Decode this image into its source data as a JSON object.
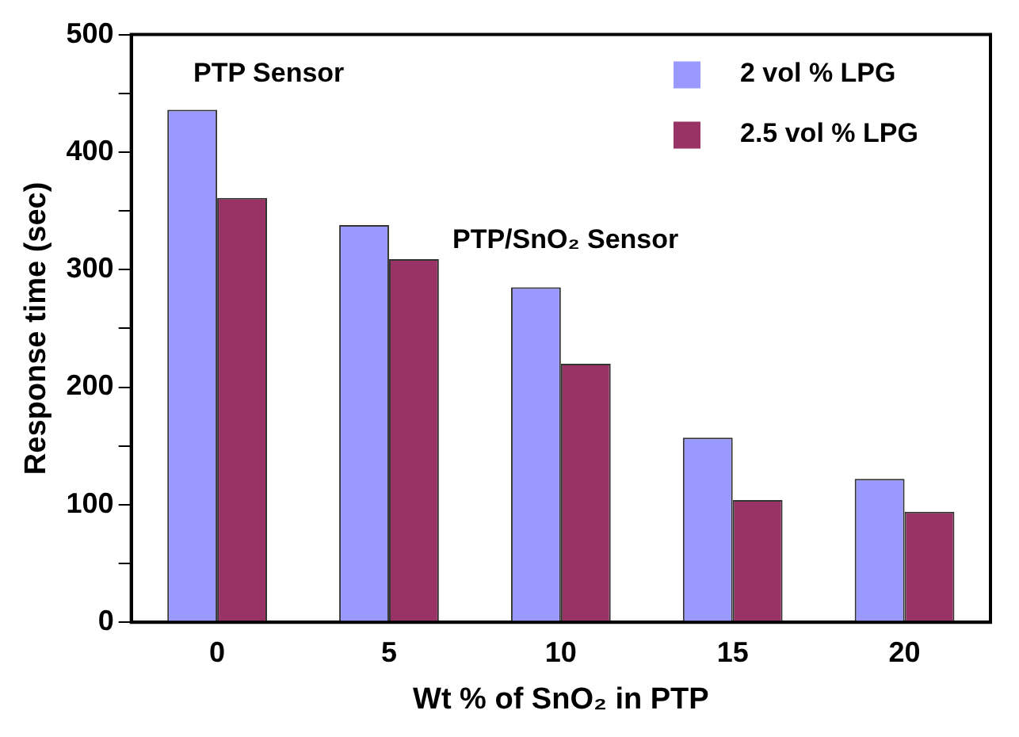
{
  "chart_data": {
    "type": "bar",
    "xlabel": "Wt % of SnO₂ in PTP",
    "ylabel": "Response time (sec)",
    "categories": [
      "0",
      "5",
      "10",
      "15",
      "20"
    ],
    "series": [
      {
        "name": "2 vol % LPG",
        "color": "#9999ff",
        "values": [
          436,
          338,
          285,
          157,
          122
        ]
      },
      {
        "name": "2.5 vol % LPG",
        "color": "#993366",
        "values": [
          361,
          309,
          220,
          104,
          94
        ]
      }
    ],
    "ylim": [
      0,
      500
    ],
    "yticks": [
      0,
      {
        "value": 50,
        "label": null
      },
      100,
      {
        "value": 150,
        "label": null
      },
      200,
      {
        "value": 250,
        "label": null
      },
      300,
      {
        "value": 350,
        "label": null
      },
      400,
      {
        "value": 450,
        "label": null
      },
      500
    ],
    "grid": false,
    "legend": "top right",
    "annotations": [
      "PTP Sensor",
      "PTP/SnO₂ Sensor"
    ]
  }
}
